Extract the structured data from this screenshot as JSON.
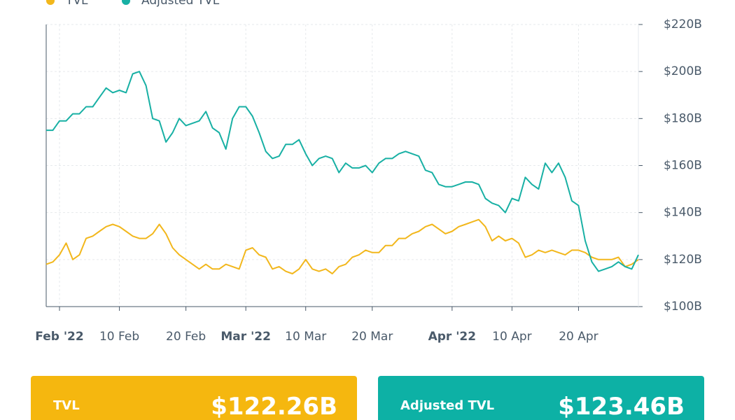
{
  "chart_data": {
    "type": "line",
    "x": [
      "2022-01-30",
      "2022-01-31",
      "2022-02-01",
      "2022-02-02",
      "2022-02-03",
      "2022-02-04",
      "2022-02-05",
      "2022-02-06",
      "2022-02-07",
      "2022-02-08",
      "2022-02-09",
      "2022-02-10",
      "2022-02-11",
      "2022-02-12",
      "2022-02-13",
      "2022-02-14",
      "2022-02-15",
      "2022-02-16",
      "2022-02-17",
      "2022-02-18",
      "2022-02-19",
      "2022-02-20",
      "2022-02-21",
      "2022-02-22",
      "2022-02-23",
      "2022-02-24",
      "2022-02-25",
      "2022-02-26",
      "2022-02-27",
      "2022-02-28",
      "2022-03-01",
      "2022-03-02",
      "2022-03-03",
      "2022-03-04",
      "2022-03-05",
      "2022-03-06",
      "2022-03-07",
      "2022-03-08",
      "2022-03-09",
      "2022-03-10",
      "2022-03-11",
      "2022-03-12",
      "2022-03-13",
      "2022-03-14",
      "2022-03-15",
      "2022-03-16",
      "2022-03-17",
      "2022-03-18",
      "2022-03-19",
      "2022-03-20",
      "2022-03-21",
      "2022-03-22",
      "2022-03-23",
      "2022-03-24",
      "2022-03-25",
      "2022-03-26",
      "2022-03-27",
      "2022-03-28",
      "2022-03-29",
      "2022-03-30",
      "2022-03-31",
      "2022-04-01",
      "2022-04-02",
      "2022-04-03",
      "2022-04-04",
      "2022-04-05",
      "2022-04-06",
      "2022-04-07",
      "2022-04-08",
      "2022-04-09",
      "2022-04-10",
      "2022-04-11",
      "2022-04-12",
      "2022-04-13",
      "2022-04-14",
      "2022-04-15",
      "2022-04-16",
      "2022-04-17",
      "2022-04-18",
      "2022-04-19",
      "2022-04-20",
      "2022-04-21",
      "2022-04-22",
      "2022-04-23",
      "2022-04-24",
      "2022-04-25",
      "2022-04-26",
      "2022-04-27",
      "2022-04-28",
      "2022-04-29"
    ],
    "series": [
      {
        "name": "TVL",
        "color": "#f2b71c",
        "values": [
          118,
          119,
          122,
          127,
          120,
          122,
          129,
          130,
          132,
          134,
          135,
          134,
          132,
          130,
          129,
          129,
          131,
          135,
          131,
          125,
          122,
          120,
          118,
          116,
          118,
          116,
          116,
          118,
          117,
          116,
          124,
          125,
          122,
          121,
          116,
          117,
          115,
          114,
          116,
          120,
          116,
          115,
          116,
          114,
          117,
          118,
          121,
          122,
          124,
          123,
          123,
          126,
          126,
          129,
          129,
          131,
          132,
          134,
          135,
          133,
          131,
          132,
          134,
          135,
          136,
          137,
          134,
          128,
          130,
          128,
          129,
          127,
          121,
          122,
          124,
          123,
          124,
          123,
          122,
          124,
          124,
          123,
          121,
          120,
          120,
          120,
          121,
          117,
          118,
          120
        ]
      },
      {
        "name": "Adjusted TVL",
        "color": "#18b0a4",
        "values": [
          175,
          175,
          179,
          179,
          182,
          182,
          185,
          185,
          189,
          193,
          191,
          192,
          191,
          199,
          200,
          194,
          180,
          179,
          170,
          174,
          180,
          177,
          178,
          179,
          183,
          176,
          174,
          167,
          180,
          185,
          185,
          181,
          174,
          166,
          163,
          164,
          169,
          169,
          171,
          165,
          160,
          163,
          164,
          163,
          157,
          161,
          159,
          159,
          160,
          157,
          161,
          163,
          163,
          165,
          166,
          165,
          164,
          158,
          157,
          152,
          151,
          151,
          152,
          153,
          153,
          152,
          146,
          144,
          143,
          140,
          146,
          145,
          155,
          152,
          150,
          161,
          157,
          161,
          155,
          145,
          143,
          128,
          119,
          115,
          116,
          117,
          119,
          117,
          116,
          122
        ]
      }
    ],
    "xlim": [
      "2022-01-30",
      "2022-04-29"
    ],
    "xticks": [
      {
        "value": "2022-02-01",
        "label": "Feb '22"
      },
      {
        "value": "2022-02-10",
        "label": "10 Feb"
      },
      {
        "value": "2022-02-20",
        "label": "20 Feb"
      },
      {
        "value": "2022-03-01",
        "label": "Mar '22"
      },
      {
        "value": "2022-03-10",
        "label": "10 Mar"
      },
      {
        "value": "2022-03-20",
        "label": "20 Mar"
      },
      {
        "value": "2022-04-01",
        "label": "Apr '22"
      },
      {
        "value": "2022-04-10",
        "label": "10 Apr"
      },
      {
        "value": "2022-04-20",
        "label": "20 Apr"
      }
    ],
    "ylim": [
      100,
      220
    ],
    "yticks": [
      {
        "value": 100,
        "label": "$100B"
      },
      {
        "value": 120,
        "label": "$120B"
      },
      {
        "value": 140,
        "label": "$140B"
      },
      {
        "value": 160,
        "label": "$160B"
      },
      {
        "value": 180,
        "label": "$180B"
      },
      {
        "value": 200,
        "label": "$200B"
      },
      {
        "value": 220,
        "label": "$220B"
      }
    ],
    "grid": true
  },
  "cards": [
    {
      "label": "TVL",
      "value": "$122.26B"
    },
    {
      "label": "Adjusted TVL",
      "value": "$123.46B"
    }
  ]
}
